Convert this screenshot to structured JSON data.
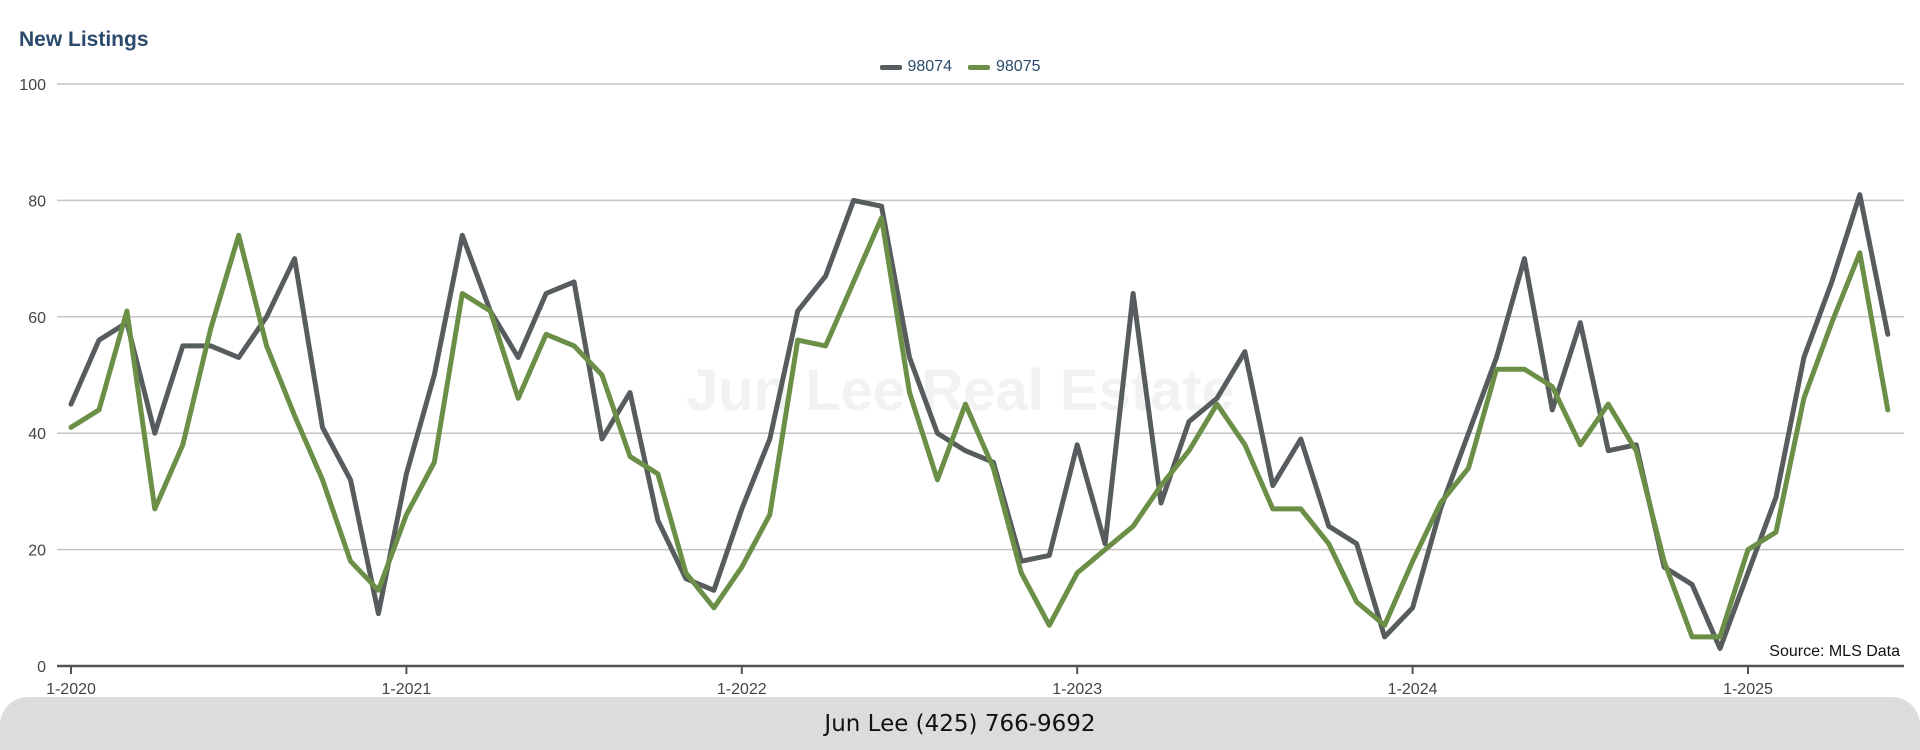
{
  "title": "New Listings",
  "footer_text": "Jun Lee (425) 766-9692",
  "source_text": "Source: MLS Data",
  "watermark_text": "Jun Lee Real Estate",
  "colors": {
    "98074": "#575d5e",
    "98075": "#6b8f47",
    "title": "#2b4a6b"
  },
  "chart_data": {
    "type": "line",
    "title": "New Listings",
    "x_tick_labels": [
      "1-2020",
      "1-2021",
      "1-2022",
      "1-2023",
      "1-2024",
      "1-2025"
    ],
    "x_start": "2020-01",
    "x_step": "month",
    "ylim": [
      0,
      100
    ],
    "y_ticks": [
      0,
      20,
      40,
      60,
      80,
      100
    ],
    "grid": true,
    "legend_position": "top-center",
    "series": [
      {
        "name": "98074",
        "color": "#575d5e",
        "values": [
          45,
          56,
          59,
          40,
          55,
          55,
          53,
          60,
          70,
          41,
          32,
          9,
          33,
          50,
          74,
          61,
          53,
          64,
          66,
          39,
          47,
          25,
          15,
          13,
          27,
          39,
          61,
          67,
          80,
          79,
          53,
          40,
          37,
          35,
          18,
          19,
          38,
          21,
          64,
          28,
          42,
          46,
          54,
          31,
          39,
          24,
          21,
          5,
          10,
          27,
          40,
          53,
          70,
          44,
          59,
          37,
          38,
          17,
          14,
          3,
          16,
          29,
          53,
          66,
          81,
          57
        ]
      },
      {
        "name": "98075",
        "color": "#6b8f47",
        "values": [
          41,
          44,
          61,
          27,
          38,
          58,
          74,
          55,
          43,
          32,
          18,
          13,
          26,
          35,
          64,
          61,
          46,
          57,
          55,
          50,
          36,
          33,
          16,
          10,
          17,
          26,
          56,
          55,
          66,
          77,
          47,
          32,
          45,
          34,
          16,
          7,
          16,
          20,
          24,
          31,
          37,
          45,
          38,
          27,
          27,
          21,
          11,
          7,
          18,
          28,
          34,
          51,
          51,
          48,
          38,
          45,
          37,
          18,
          5,
          5,
          20,
          23,
          46,
          59,
          71,
          44
        ]
      }
    ]
  }
}
